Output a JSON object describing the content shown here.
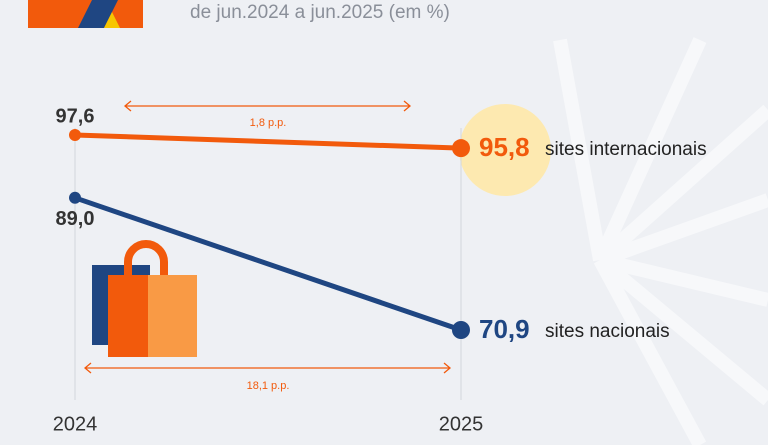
{
  "chart_data": {
    "type": "line",
    "subtitle": "de jun.2024 a jun.2025 (em %)",
    "categories": [
      "2024",
      "2025"
    ],
    "series": [
      {
        "name": "sites internacionais",
        "color": "#f25a0c",
        "values": [
          97.6,
          95.8
        ],
        "value_labels": [
          "97,6",
          "95,8"
        ]
      },
      {
        "name": "sites nacionais",
        "color": "#1f4682",
        "values": [
          89.0,
          70.9
        ],
        "value_labels": [
          "89,0",
          "70,9"
        ]
      }
    ],
    "annotations": [
      "1,8 p.p.",
      "18,1 p.p."
    ]
  }
}
